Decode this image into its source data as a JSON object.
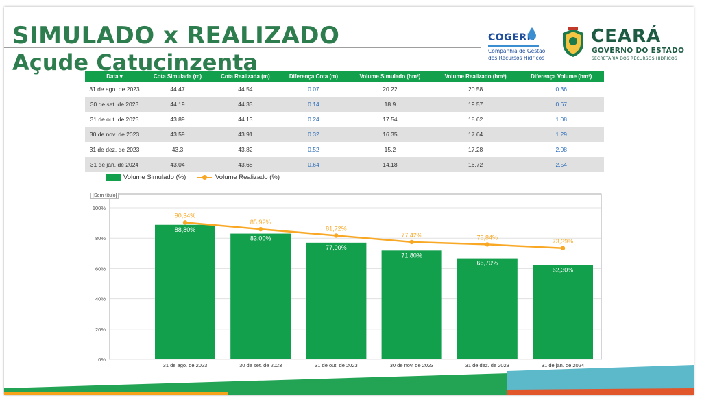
{
  "title": {
    "line1": "SIMULADO x REALIZADO",
    "line2": "Açude Catucinzenta"
  },
  "logos": {
    "cogerh": {
      "name": "COGERH",
      "subtitle_line1": "Companhia de Gestão",
      "subtitle_line2": "dos Recursos Hídricos"
    },
    "ceara": {
      "name": "CEARÁ",
      "government": "GOVERNO DO ESTADO",
      "secretariat": "SECRETARIA DOS RECURSOS HÍDRICOS"
    }
  },
  "table": {
    "headers": [
      "Data ▾",
      "Cota Simulada (m)",
      "Cota Realizada (m)",
      "Diferença Cota (m)",
      "Volume Simulado (hm³)",
      "Volume Realizado (hm³)",
      "Diferença Volume (hm³)"
    ],
    "rows": [
      [
        "31 de ago. de 2023",
        "44.47",
        "44.54",
        "0.07",
        "20.22",
        "20.58",
        "0.36"
      ],
      [
        "30 de set. de 2023",
        "44.19",
        "44.33",
        "0.14",
        "18.9",
        "19.57",
        "0.67"
      ],
      [
        "31 de out. de 2023",
        "43.89",
        "44.13",
        "0.24",
        "17.54",
        "18.62",
        "1.08"
      ],
      [
        "30 de nov. de 2023",
        "43.59",
        "43.91",
        "0.32",
        "16.35",
        "17.64",
        "1.29"
      ],
      [
        "31 de dez. de 2023",
        "43.3",
        "43.82",
        "0.52",
        "15.2",
        "17.28",
        "2.08"
      ],
      [
        "31 de jan. de 2024",
        "43.04",
        "43.68",
        "0.64",
        "14.18",
        "16.72",
        "2.54"
      ]
    ]
  },
  "chart_placeholder_label": "[Sem título]",
  "chart_data": {
    "type": "bar",
    "categories": [
      "31 de ago. de 2023",
      "30 de set. de 2023",
      "31 de out. de 2023",
      "30 de nov. de 2023",
      "31 de dez. de 2023",
      "31 de jan. de 2024"
    ],
    "series": [
      {
        "name": "Volume Simulado (%)",
        "type": "bar",
        "values": [
          88.8,
          83.0,
          77.0,
          71.8,
          66.7,
          62.3
        ],
        "labels": [
          "88,80%",
          "83,00%",
          "77,00%",
          "71,80%",
          "66,70%",
          "62,30%"
        ],
        "color": "#12a04c"
      },
      {
        "name": "Volume Realizado (%)",
        "type": "line",
        "values": [
          90.34,
          85.92,
          81.72,
          77.42,
          75.84,
          73.39
        ],
        "labels": [
          "90,34%",
          "85,92%",
          "81,72%",
          "77,42%",
          "75,84%",
          "73,39%"
        ],
        "color": "#f9a825"
      }
    ],
    "yticks": [
      "0%",
      "20%",
      "40%",
      "60%",
      "80%",
      "100%"
    ],
    "ylim": [
      0,
      100
    ],
    "grid": true,
    "legend_position": "top-left"
  },
  "colors": {
    "title_green": "#2e7d4f",
    "header_green": "#12a04c",
    "diff_blue": "#2a6bb8",
    "line_orange": "#f9a825"
  }
}
